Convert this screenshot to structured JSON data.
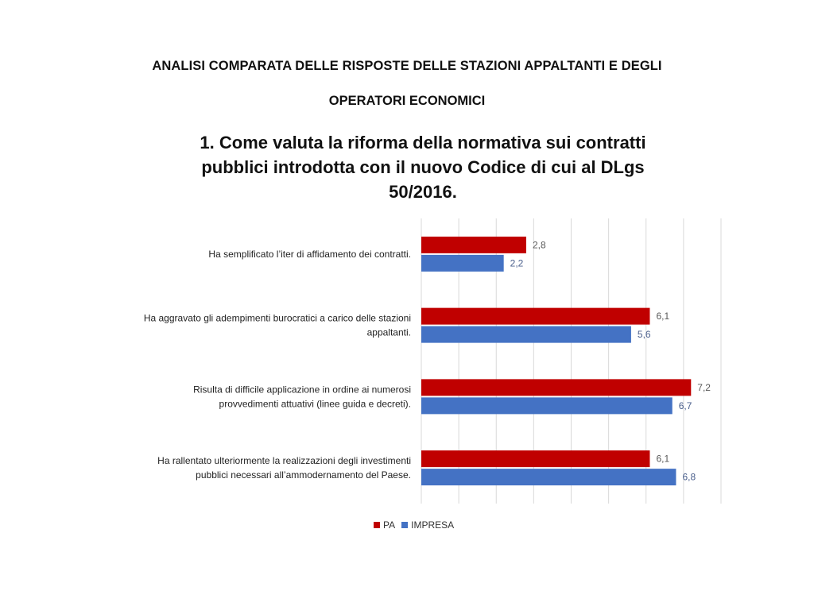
{
  "header": {
    "line1": "ANALISI COMPARATA DELLE RISPOSTE DELLE STAZIONI APPALTANTI E DEGLI",
    "line2": "OPERATORI ECONOMICI"
  },
  "chart_data": {
    "type": "bar",
    "orientation": "horizontal",
    "title_lines": [
      "1. Come valuta la riforma della normativa sui contratti",
      "pubblici introdotta con il nuovo Codice di cui al DLgs",
      "50/2016."
    ],
    "categories": [
      [
        "Ha semplificato l’iter di affidamento dei contratti."
      ],
      [
        "Ha aggravato gli adempimenti burocratici a carico delle stazioni",
        "appaltanti."
      ],
      [
        "Risulta di difficile applicazione in ordine ai numerosi",
        "provvedimenti attuativi (linee guida e decreti)."
      ],
      [
        "Ha rallentato ulteriormente la realizzazioni degli investimenti",
        "pubblici necessari all’ammodernamento del Paese."
      ]
    ],
    "series": [
      {
        "name": "PA",
        "color": "#C00000",
        "values": [
          2.8,
          6.1,
          7.2,
          6.1
        ],
        "labels": [
          "2,8",
          "6,1",
          "7,2",
          "6,1"
        ]
      },
      {
        "name": "IMPRESA",
        "color": "#4472C4",
        "values": [
          2.2,
          5.6,
          6.7,
          6.8
        ],
        "labels": [
          "2,2",
          "5,6",
          "6,7",
          "6,8"
        ]
      }
    ],
    "xlim": [
      0,
      8
    ],
    "grid": true,
    "legend_position": "bottom"
  }
}
